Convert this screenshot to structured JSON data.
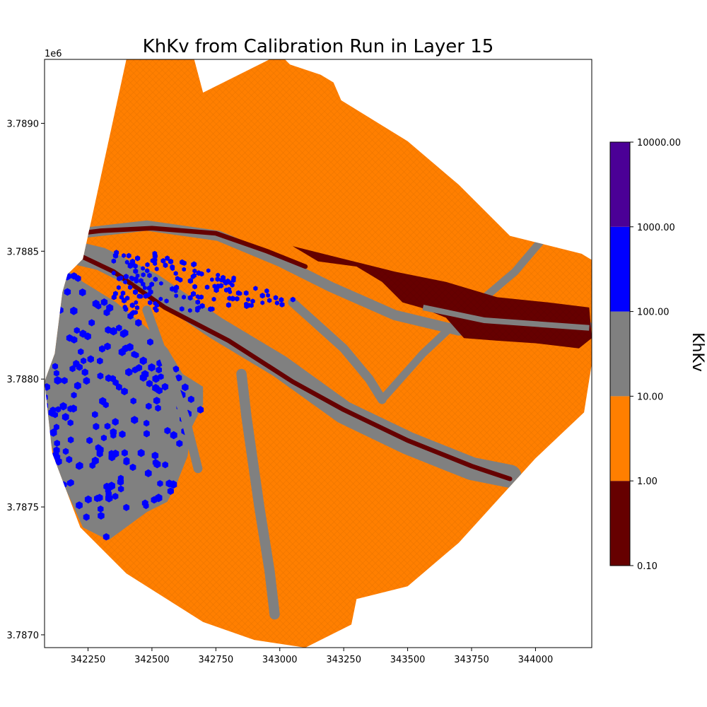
{
  "chart_data": {
    "type": "heatmap",
    "title": "KhKv from Calibration Run in Layer 15",
    "xlabel": "",
    "ylabel": "",
    "y_offset_label": "1e6",
    "xlim": [
      342080,
      344220
    ],
    "ylim": [
      3786950,
      3789250
    ],
    "x_ticks": [
      {
        "value": 342250,
        "label": "342250"
      },
      {
        "value": 342500,
        "label": "342500"
      },
      {
        "value": 342750,
        "label": "342750"
      },
      {
        "value": 343000,
        "label": "343000"
      },
      {
        "value": 343250,
        "label": "343250"
      },
      {
        "value": 343500,
        "label": "343500"
      },
      {
        "value": 343750,
        "label": "343750"
      },
      {
        "value": 344000,
        "label": "344000"
      }
    ],
    "y_ticks": [
      {
        "value": 3787000,
        "label": "3.7870"
      },
      {
        "value": 3787500,
        "label": "3.7875"
      },
      {
        "value": 3788000,
        "label": "3.7880"
      },
      {
        "value": 3788500,
        "label": "3.7885"
      },
      {
        "value": 3789000,
        "label": "3.7890"
      }
    ],
    "colorbar": {
      "label": "KhKv",
      "scale": "log",
      "bins": [
        {
          "from": 0.1,
          "to": 1,
          "color": "#660000"
        },
        {
          "from": 1,
          "to": 10,
          "color": "#ff7f00"
        },
        {
          "from": 10,
          "to": 100,
          "color": "#808080"
        },
        {
          "from": 100,
          "to": 1000,
          "color": "#0000ff"
        },
        {
          "from": 1000,
          "to": 10000,
          "color": "#4b0096"
        }
      ],
      "tick_labels": [
        "0.10",
        "1.00",
        "10.00",
        "100.00",
        "1000.00",
        "10000.00"
      ]
    },
    "regions": {
      "domain": {
        "value_class": "1-10",
        "color": "#ff7f00",
        "boundary": [
          [
            342150,
            3788340
          ],
          [
            342170,
            3788410
          ],
          [
            342230,
            3788470
          ],
          [
            342400,
            3789250
          ],
          [
            342580,
            3789570
          ],
          [
            342700,
            3789120
          ],
          [
            343000,
            3789270
          ],
          [
            343040,
            3789230
          ],
          [
            343160,
            3789190
          ],
          [
            343210,
            3789160
          ],
          [
            343240,
            3789090
          ],
          [
            343500,
            3788930
          ],
          [
            343700,
            3788760
          ],
          [
            343900,
            3788560
          ],
          [
            344180,
            3788490
          ],
          [
            344230,
            3788460
          ],
          [
            344220,
            3788060
          ],
          [
            344190,
            3787870
          ],
          [
            344000,
            3787690
          ],
          [
            343700,
            3787360
          ],
          [
            343500,
            3787190
          ],
          [
            343300,
            3787140
          ],
          [
            343280,
            3787040
          ],
          [
            343100,
            3786950
          ],
          [
            342900,
            3786980
          ],
          [
            342700,
            3787050
          ],
          [
            342400,
            3787240
          ],
          [
            342220,
            3787420
          ],
          [
            342110,
            3787710
          ],
          [
            342080,
            3787990
          ],
          [
            342120,
            3788100
          ],
          [
            342150,
            3788340
          ]
        ]
      },
      "west_mixed_zone": {
        "value_classes": [
          "10-100",
          "100-1000"
        ],
        "colors": [
          "#808080",
          "#0000ff"
        ],
        "boundary": [
          [
            342150,
            3788440
          ],
          [
            342230,
            3788380
          ],
          [
            342360,
            3788300
          ],
          [
            342480,
            3788200
          ],
          [
            342560,
            3788120
          ],
          [
            342620,
            3788020
          ],
          [
            342700,
            3787970
          ],
          [
            342700,
            3787900
          ],
          [
            342650,
            3787800
          ],
          [
            342640,
            3787700
          ],
          [
            342600,
            3787600
          ],
          [
            342560,
            3787520
          ],
          [
            342480,
            3787480
          ],
          [
            342330,
            3787370
          ],
          [
            342230,
            3787420
          ],
          [
            342140,
            3787620
          ],
          [
            342080,
            3787840
          ],
          [
            342080,
            3787990
          ],
          [
            342110,
            3788090
          ],
          [
            342130,
            3788220
          ],
          [
            342150,
            3788440
          ]
        ]
      },
      "north_blue_scatter": {
        "value_class": "100-1000",
        "color": "#0000ff",
        "extent": {
          "x": [
            342350,
            343150
          ],
          "y": [
            3788250,
            3788500
          ]
        }
      },
      "channels": [
        {
          "value_class": "10-100",
          "color": "#808080",
          "path": [
            [
              342130,
              3788510
            ],
            [
              342300,
              3788470
            ],
            [
              342500,
              3788370
            ],
            [
              342750,
              3788200
            ],
            [
              343000,
              3788050
            ],
            [
              343250,
              3787870
            ],
            [
              343500,
              3787750
            ],
            [
              343750,
              3787650
            ],
            [
              343900,
              3787620
            ]
          ],
          "width": 90
        },
        {
          "value_class": "10-100",
          "color": "#808080",
          "path": [
            [
              342130,
              3788560
            ],
            [
              342480,
              3788600
            ],
            [
              342760,
              3788560
            ],
            [
              343000,
              3788460
            ],
            [
              343200,
              3788360
            ],
            [
              343450,
              3788250
            ],
            [
              343700,
              3788190
            ],
            [
              344200,
              3788210
            ]
          ],
          "width": 40
        },
        {
          "value_class": "10-100",
          "color": "#808080",
          "path": [
            [
              342850,
              3788020
            ],
            [
              342870,
              3787850
            ],
            [
              342920,
              3787500
            ],
            [
              342960,
              3787250
            ],
            [
              342980,
              3787080
            ]
          ],
          "width": 40
        },
        {
          "value_class": "10-100",
          "color": "#808080",
          "path": [
            [
              343050,
              3788300
            ],
            [
              343250,
              3788120
            ],
            [
              343350,
              3788000
            ],
            [
              343400,
              3787920
            ]
          ],
          "width": 35
        },
        {
          "value_class": "10-100",
          "color": "#808080",
          "path": [
            [
              343400,
              3787920
            ],
            [
              343560,
              3788100
            ],
            [
              343720,
              3788250
            ],
            [
              343920,
              3788420
            ],
            [
              344030,
              3788550
            ]
          ],
          "width": 30
        },
        {
          "value_class": "10-100",
          "color": "#808080",
          "path": [
            [
              342480,
              3788270
            ],
            [
              342560,
              3788050
            ],
            [
              342630,
              3787850
            ],
            [
              342680,
              3787650
            ]
          ],
          "width": 35
        }
      ],
      "low_value_bands": [
        {
          "value_class": "0.1-1",
          "color": "#660000",
          "path": [
            [
              342140,
              3788520
            ],
            [
              342350,
              3788420
            ],
            [
              342550,
              3788280
            ],
            [
              342800,
              3788150
            ],
            [
              343050,
              3787990
            ],
            [
              343250,
              3787880
            ],
            [
              343500,
              3787760
            ],
            [
              343750,
              3787660
            ],
            [
              343900,
              3787610
            ]
          ],
          "width": 18
        },
        {
          "value_class": "0.1-1",
          "color": "#660000",
          "path": [
            [
              342130,
              3788560
            ],
            [
              342300,
              3788580
            ],
            [
              342500,
              3788590
            ],
            [
              342750,
              3788570
            ],
            [
              342950,
              3788500
            ],
            [
              343100,
              3788440
            ]
          ],
          "width": 18
        }
      ],
      "east_low_zone": {
        "value_class": "0.1-1",
        "color": "#660000",
        "boundary": [
          [
            343050,
            3788520
          ],
          [
            343250,
            3788470
          ],
          [
            343450,
            3788420
          ],
          [
            343650,
            3788380
          ],
          [
            343850,
            3788320
          ],
          [
            344050,
            3788300
          ],
          [
            344210,
            3788280
          ],
          [
            344220,
            3788160
          ],
          [
            344170,
            3788120
          ],
          [
            344000,
            3788140
          ],
          [
            343850,
            3788150
          ],
          [
            343720,
            3788160
          ],
          [
            343650,
            3788240
          ],
          [
            343550,
            3788280
          ],
          [
            343480,
            3788300
          ],
          [
            343400,
            3788380
          ],
          [
            343300,
            3788440
          ],
          [
            343150,
            3788460
          ],
          [
            343050,
            3788520
          ]
        ]
      }
    }
  }
}
